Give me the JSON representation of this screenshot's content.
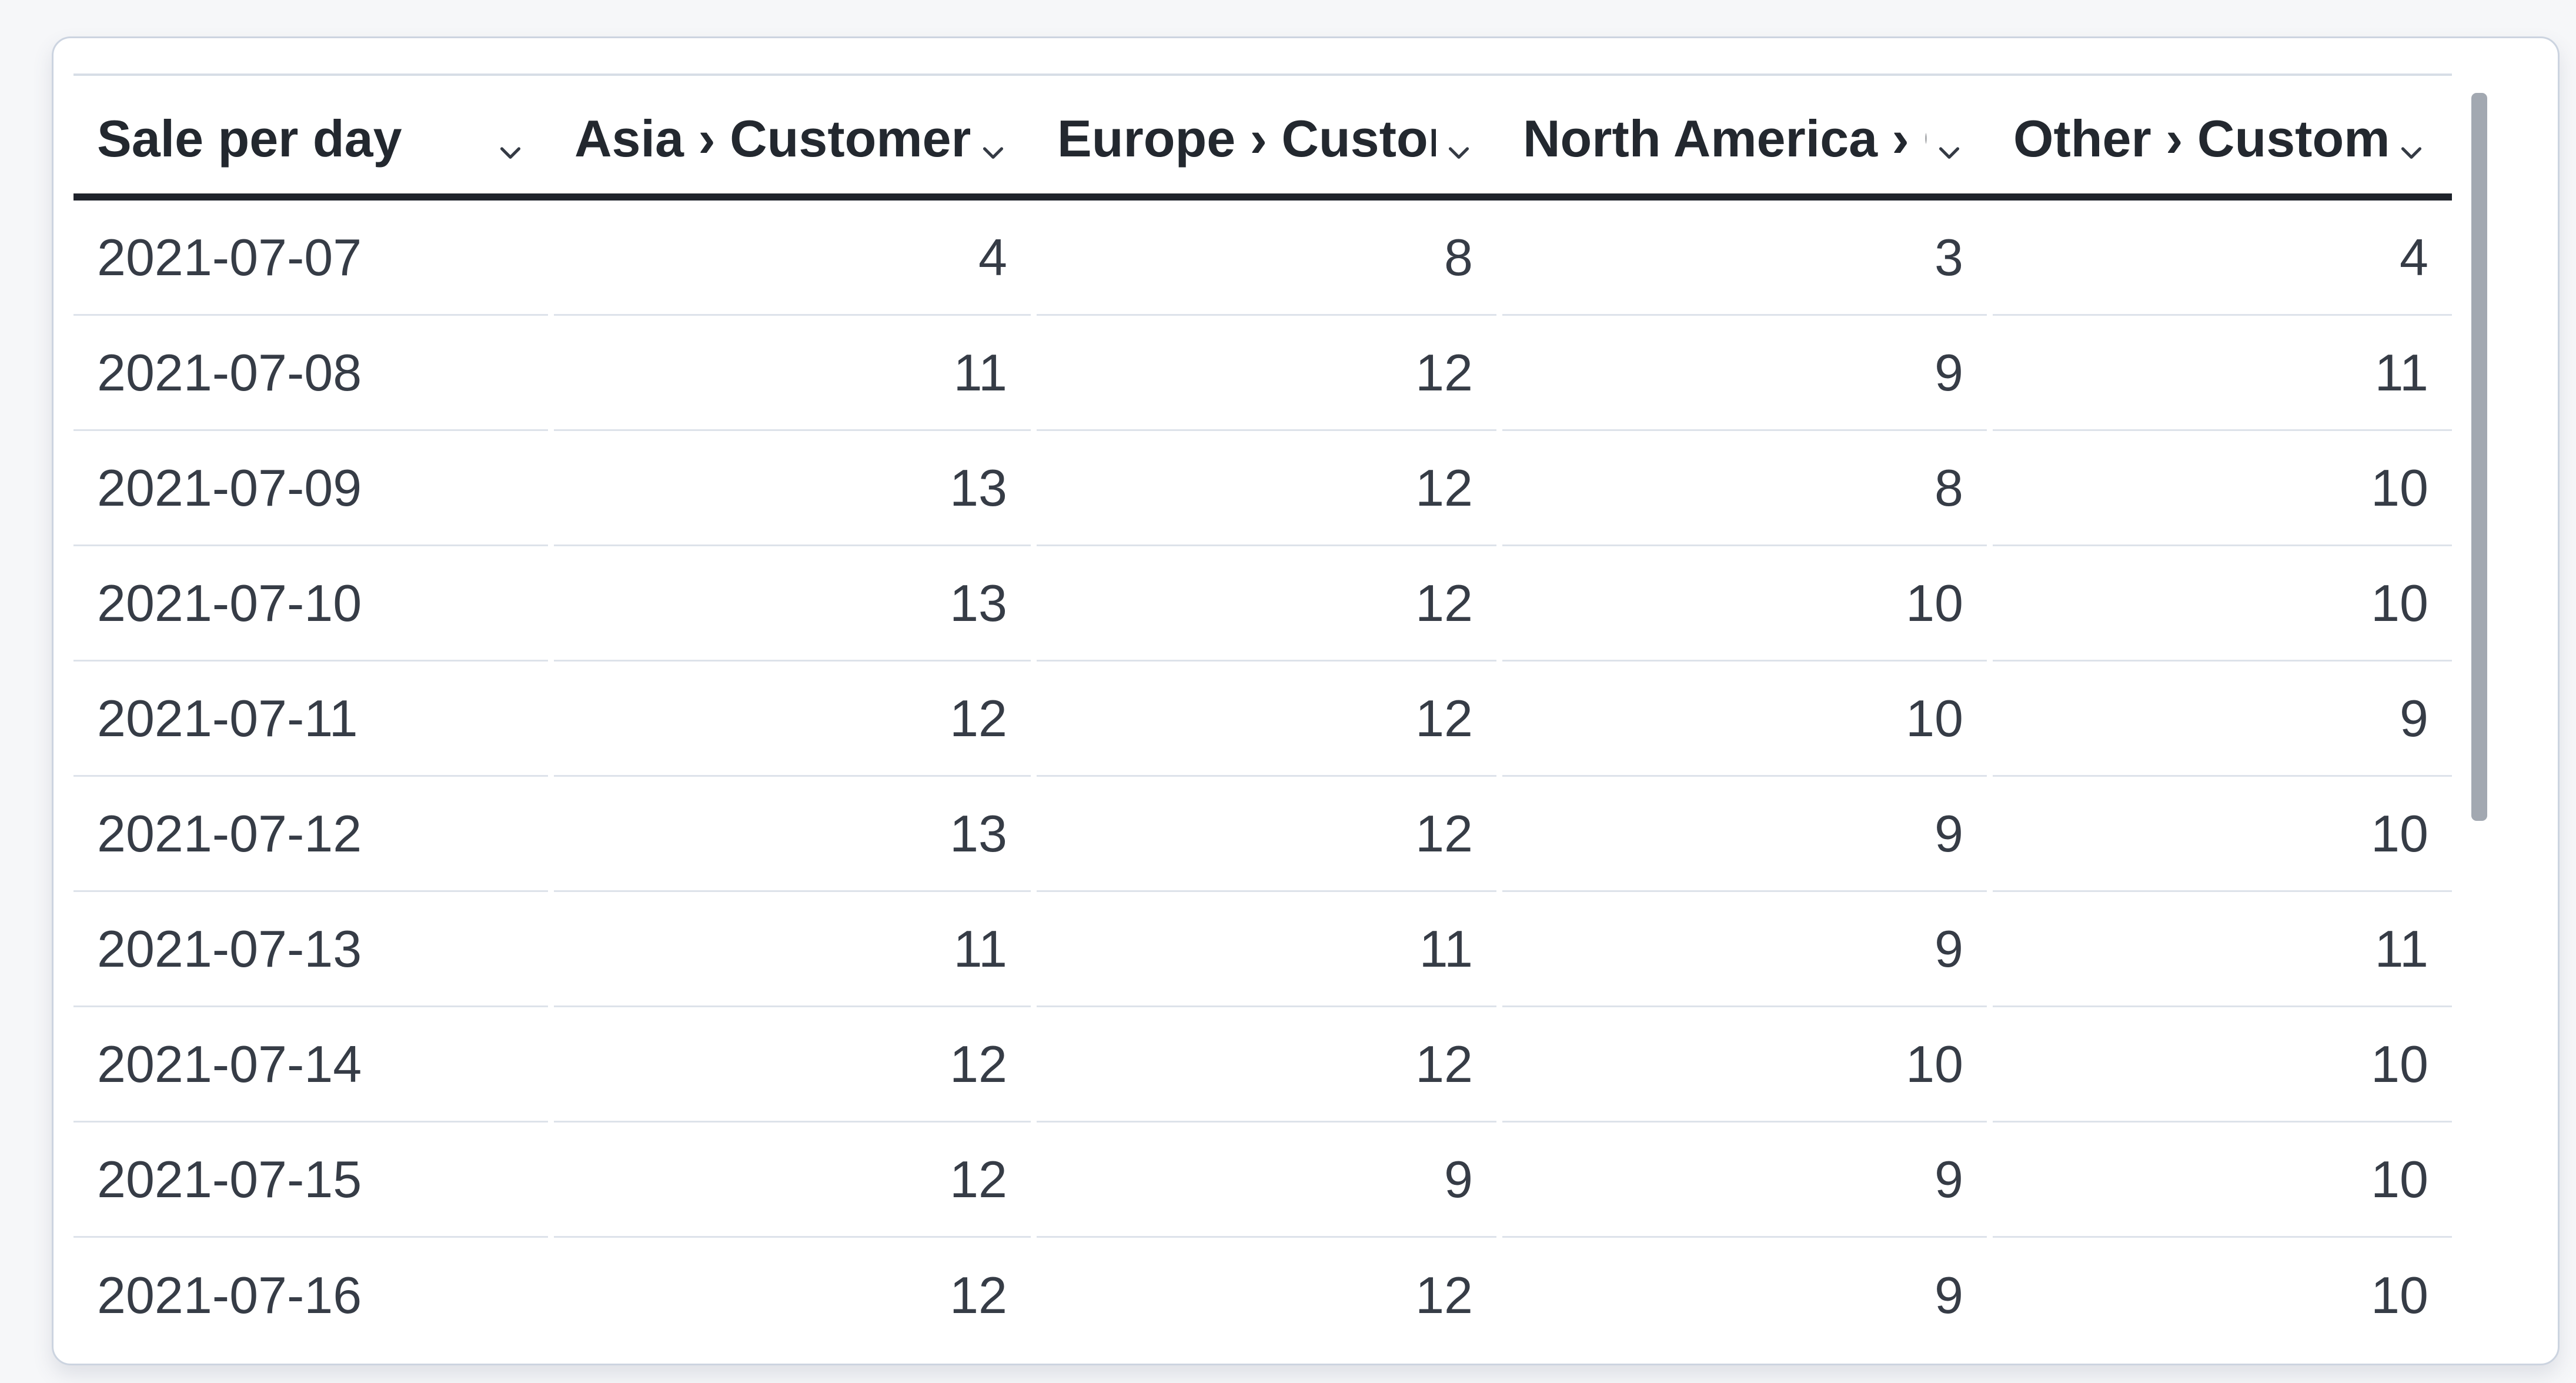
{
  "theme": {
    "page_bg": "#f6f7f9",
    "card_bg": "#ffffff",
    "card_border": "#ccd4e0",
    "header_text": "#23282f",
    "cell_text": "#363c46",
    "divider": "#dde2ea",
    "header_top_border": "#d7dde6",
    "header_underline": "#1f232b",
    "scrollbar_thumb": "#a2a8b1"
  },
  "icons": {
    "column_sort": "chevron-down-icon"
  },
  "table": {
    "columns": [
      {
        "label": "Sale per day",
        "align": "left"
      },
      {
        "label": "Asia › Customers",
        "align": "right"
      },
      {
        "label": "Europe › Customers",
        "align": "right"
      },
      {
        "label": "North America › Customers",
        "align": "right"
      },
      {
        "label": "Other › Customers",
        "align": "right"
      }
    ],
    "rows": [
      [
        "2021-07-07",
        "4",
        "8",
        "3",
        "4"
      ],
      [
        "2021-07-08",
        "11",
        "12",
        "9",
        "11"
      ],
      [
        "2021-07-09",
        "13",
        "12",
        "8",
        "10"
      ],
      [
        "2021-07-10",
        "13",
        "12",
        "10",
        "10"
      ],
      [
        "2021-07-11",
        "12",
        "12",
        "10",
        "9"
      ],
      [
        "2021-07-12",
        "13",
        "12",
        "9",
        "10"
      ],
      [
        "2021-07-13",
        "11",
        "11",
        "9",
        "11"
      ],
      [
        "2021-07-14",
        "12",
        "12",
        "10",
        "10"
      ],
      [
        "2021-07-15",
        "12",
        "9",
        "9",
        "10"
      ],
      [
        "2021-07-16",
        "12",
        "12",
        "9",
        "10"
      ]
    ]
  },
  "scrollbar": {
    "visible": true
  }
}
